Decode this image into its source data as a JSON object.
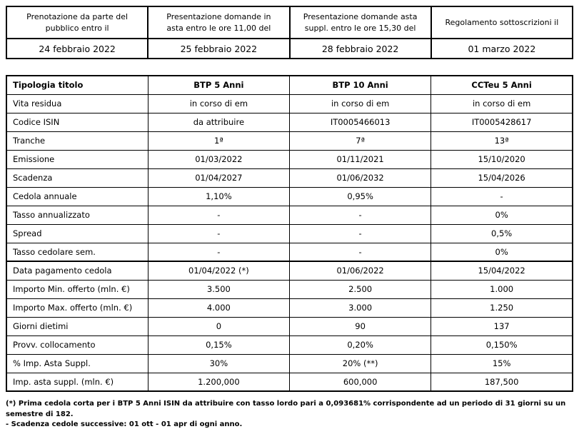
{
  "top_table": {
    "headers": [
      "Prenotazione da parte del pubblico entro il",
      "Presentazione domande in asta entro le ore 11,00 del",
      "Presentazione domande asta suppl. entro le ore 15,30 del",
      "Regolamento sottoscrizioni il"
    ],
    "dates": [
      "24 febbraio 2022",
      "25 febbraio 2022",
      "28 febbraio 2022",
      "01 marzo 2022"
    ]
  },
  "main_table": {
    "header": {
      "label": "Tipologia titolo",
      "cols": [
        "BTP 5 Anni",
        "BTP 10 Anni",
        "CCTeu 5 Anni"
      ]
    },
    "rows": [
      {
        "label": "Vita residua",
        "values": [
          "in corso di em",
          "in corso di em",
          "in corso di em"
        ]
      },
      {
        "label": "Codice ISIN",
        "values": [
          "da attribuire",
          "IT0005466013",
          "IT0005428617"
        ]
      },
      {
        "label": "Tranche",
        "values": [
          "1ª",
          "7ª",
          "13ª"
        ]
      },
      {
        "label": "Emissione",
        "values": [
          "01/03/2022",
          "01/11/2021",
          "15/10/2020"
        ]
      },
      {
        "label": "Scadenza",
        "values": [
          "01/04/2027",
          "01/06/2032",
          "15/04/2026"
        ]
      },
      {
        "label": "Cedola annuale",
        "values": [
          "1,10%",
          "0,95%",
          "-"
        ]
      },
      {
        "label": "Tasso annualizzato",
        "values": [
          "-",
          "-",
          "0%"
        ]
      },
      {
        "label": "Spread",
        "values": [
          "-",
          "-",
          "0,5%"
        ]
      },
      {
        "label": "Tasso cedolare sem.",
        "values": [
          "-",
          "-",
          "0%"
        ]
      },
      {
        "label": "Data pagamento cedola",
        "values": [
          "01/04/2022 (*)",
          "01/06/2022",
          "15/04/2022"
        ]
      },
      {
        "label": "Importo Min. offerto (mln. €)",
        "values": [
          "3.500",
          "2.500",
          "1.000"
        ]
      },
      {
        "label": "Importo Max. offerto (mln. €)",
        "values": [
          "4.000",
          "3.000",
          "1.250"
        ]
      },
      {
        "label": "Giorni dietimi",
        "values": [
          "0",
          "90",
          "137"
        ]
      },
      {
        "label": "Provv. collocamento",
        "values": [
          "0,15%",
          "0,20%",
          "0,150%"
        ]
      },
      {
        "label": "% Imp. Asta Suppl.",
        "values": [
          "30%",
          "20% (**)",
          "15%"
        ]
      },
      {
        "label": "Imp. asta suppl. (mln. €)",
        "values": [
          "1.200,000",
          "600,000",
          "187,500"
        ]
      }
    ]
  },
  "footnotes": [
    "(*) Prima cedola corta per i BTP 5 Anni ISIN da attribuire con tasso lordo pari a 0,093681% corrispondente ad un periodo di 31 giorni su un semestre di 182.",
    "- Scadenza cedole successive: 01 ott - 01 apr di ogni anno."
  ]
}
